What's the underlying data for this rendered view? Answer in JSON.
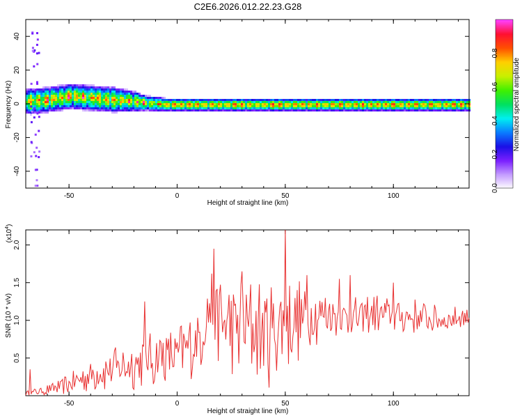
{
  "title": "C2E6.2026.012.22.23.G28",
  "chart_data": [
    {
      "type": "heatmap",
      "xlabel": "Height of straight line (km)",
      "ylabel": "Frequency (Hz)",
      "xlim": [
        -70,
        135
      ],
      "ylim": [
        -50,
        50
      ],
      "xticks": [
        -50,
        0,
        50,
        100
      ],
      "yticks": [
        -40,
        -20,
        0,
        20,
        40
      ],
      "colorbar": {
        "label": "Normalized spectral amplitude",
        "range": [
          0,
          1
        ],
        "ticks": [
          "0.0",
          "0.2",
          "0.4",
          "0.6",
          "0.8"
        ],
        "colors": [
          "#ffffff",
          "#c49cff",
          "#7a1fff",
          "#1a10e6",
          "#0a7cff",
          "#00f0f0",
          "#00e060",
          "#40f000",
          "#c8f000",
          "#ffd000",
          "#ff5000",
          "#ff1030",
          "#ff40ff"
        ]
      },
      "ridge": {
        "description_x": [
          -68,
          -60,
          -50,
          -40,
          -30,
          -20,
          -15,
          -10,
          -5,
          0,
          50,
          100,
          135
        ],
        "center_freq_hz": [
          2,
          3,
          5,
          4,
          3,
          2,
          1,
          0.5,
          0,
          0,
          0,
          0,
          0
        ],
        "halfwidth_hz": [
          5,
          5,
          5,
          5,
          5,
          4,
          3,
          3,
          2.5,
          2.5,
          2.5,
          2.5,
          2.5
        ]
      }
    },
    {
      "type": "line",
      "xlabel": "Height of straight line (km)",
      "ylabel": "SNR (10 * v/v)",
      "yscale_label": "(x10",
      "yscale_exp": "4",
      "xlim": [
        -70,
        135
      ],
      "ylim": [
        0,
        2.2
      ],
      "xticks": [
        -50,
        0,
        50,
        100
      ],
      "yticks": [
        "0.5",
        "1.0",
        "1.5",
        "2.0"
      ],
      "yticks_values": [
        0.5,
        1.0,
        1.5,
        2.0
      ],
      "color": "#e83030",
      "x_start": -70,
      "x_step": 0.5,
      "envelope_x": [
        -70,
        -60,
        -50,
        -40,
        -30,
        -20,
        -10,
        0,
        10,
        15,
        20,
        30,
        40,
        50,
        60,
        70,
        80,
        90,
        100,
        110,
        120,
        135
      ],
      "envelope_mean": [
        0.03,
        0.08,
        0.15,
        0.28,
        0.35,
        0.42,
        0.52,
        0.55,
        0.75,
        1.2,
        0.95,
        0.9,
        0.85,
        0.95,
        1.05,
        1.1,
        1.0,
        1.1,
        1.05,
        1.05,
        1.0,
        1.05
      ],
      "envelope_amp": [
        0.03,
        0.08,
        0.15,
        0.25,
        0.3,
        0.35,
        0.45,
        0.4,
        0.5,
        0.6,
        0.7,
        0.75,
        0.8,
        0.7,
        0.5,
        0.35,
        0.3,
        0.3,
        0.25,
        0.25,
        0.2,
        0.15
      ],
      "peaks": [
        {
          "x": -68,
          "y": 0.35
        },
        {
          "x": -15,
          "y": 1.25
        },
        {
          "x": 17,
          "y": 1.95
        },
        {
          "x": 30,
          "y": 1.65
        },
        {
          "x": 50,
          "y": 2.2
        },
        {
          "x": 60,
          "y": 1.6
        },
        {
          "x": 75,
          "y": 1.55
        },
        {
          "x": 80,
          "y": 1.6
        },
        {
          "x": 100,
          "y": 1.5
        }
      ]
    }
  ]
}
